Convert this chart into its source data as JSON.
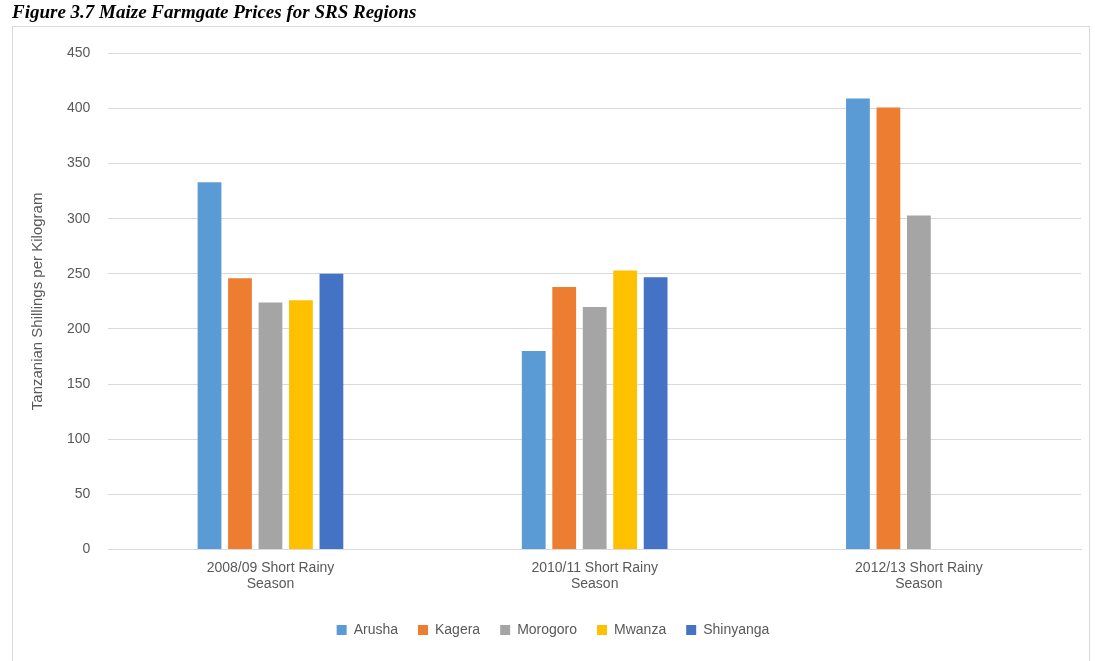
{
  "chart_data": {
    "type": "bar",
    "title": "Figure 3.7 Maize Farmgate Prices for SRS Regions",
    "ylabel": "Tanzanian Shillings per Kilogram",
    "categories": [
      "2008/09 Short Rainy Season",
      "2010/11 Short Rainy Season",
      "2012/13 Short Rainy Season"
    ],
    "series": [
      {
        "name": "Arusha",
        "color": "#5b9bd5",
        "values": [
          333,
          180,
          409
        ]
      },
      {
        "name": "Kagera",
        "color": "#ed7d31",
        "values": [
          246,
          238,
          401
        ]
      },
      {
        "name": "Morogoro",
        "color": "#a5a5a5",
        "values": [
          224,
          220,
          303
        ]
      },
      {
        "name": "Mwanza",
        "color": "#ffc000",
        "values": [
          226,
          253,
          null
        ]
      },
      {
        "name": "Shinyanga",
        "color": "#4472c4",
        "values": [
          250,
          247,
          null
        ]
      }
    ],
    "ylim": [
      0,
      450
    ],
    "yticks": [
      0,
      50,
      100,
      150,
      200,
      250,
      300,
      350,
      400,
      450
    ],
    "grid": "y",
    "legend": "bottom"
  }
}
